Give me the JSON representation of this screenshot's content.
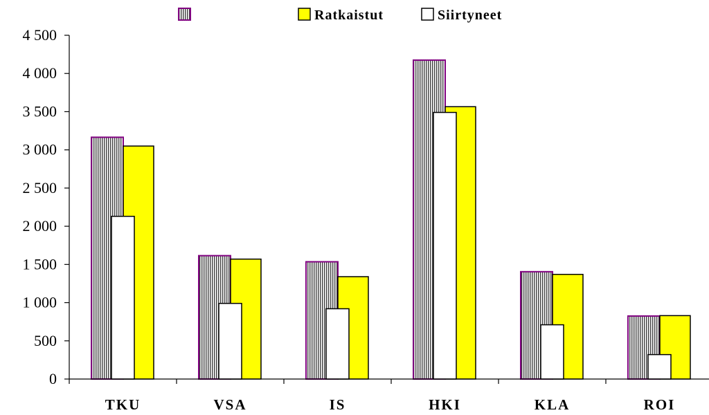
{
  "chart_data": {
    "type": "bar",
    "categories": [
      "TKU",
      "VSA",
      "IS",
      "HKI",
      "KLA",
      "ROI"
    ],
    "series": [
      {
        "name": "",
        "style": "hatched",
        "color": "#800080",
        "values": [
          3165,
          1615,
          1535,
          4175,
          1405,
          825
        ]
      },
      {
        "name": "Ratkaistut",
        "style": "solid",
        "color": "#ffff00",
        "values": [
          3050,
          1570,
          1340,
          3565,
          1370,
          830
        ]
      },
      {
        "name": "Siirtyneet",
        "style": "solid",
        "color": "#ffffff",
        "values": [
          2130,
          990,
          920,
          3490,
          710,
          320
        ]
      }
    ],
    "y_ticks": [
      0,
      500,
      1000,
      1500,
      2000,
      2500,
      3000,
      3500,
      4000,
      4500
    ],
    "y_tick_labels": [
      "0",
      "500",
      "1 000",
      "1 500",
      "2 000",
      "2 500",
      "3 000",
      "3 500",
      "4 000",
      "4 500"
    ],
    "ylim": [
      0,
      4500
    ],
    "legend_position": "top",
    "grid": false
  }
}
